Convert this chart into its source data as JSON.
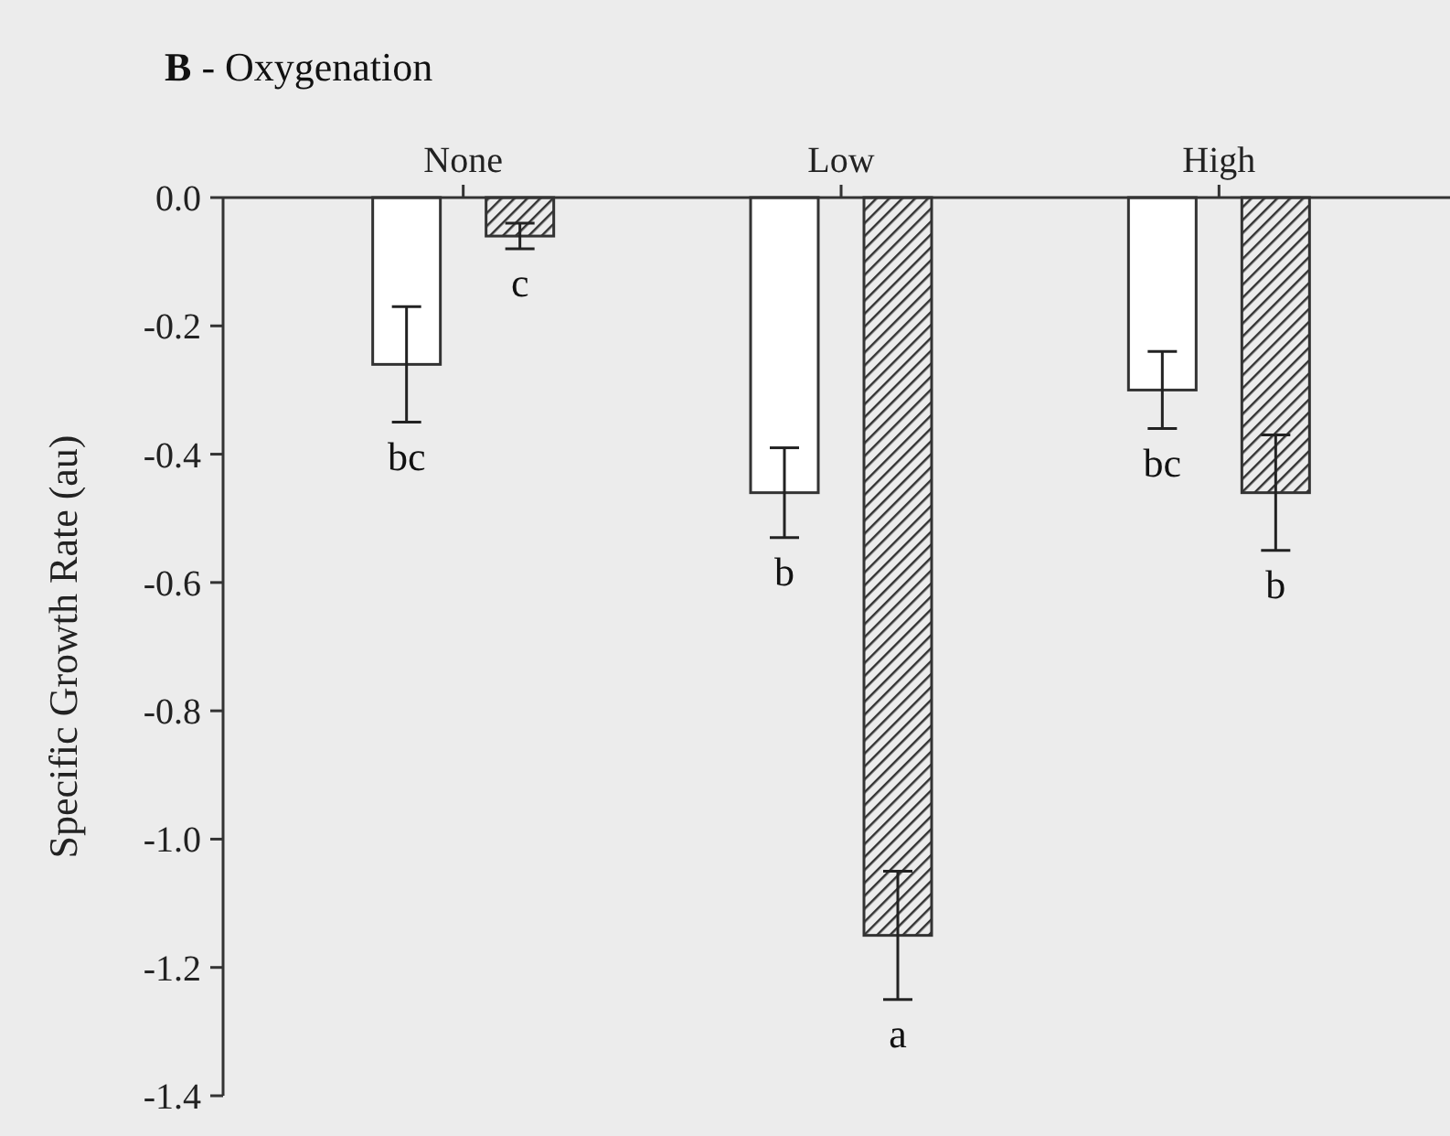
{
  "chart_data": {
    "type": "bar",
    "title": "B - Oxygenation",
    "ylabel": "Specific Growth Rate (au)",
    "categories": [
      "None",
      "Low",
      "High"
    ],
    "series": [
      {
        "color": "#ffffff",
        "values": [
          -0.26,
          -0.46,
          -0.3
        ],
        "errors": [
          0.09,
          0.07,
          0.06
        ]
      },
      {
        "color": "#333333",
        "values": [
          -0.06,
          -1.15,
          -0.46
        ],
        "errors": [
          0.02,
          0.1,
          0.09
        ]
      }
    ],
    "ylim": [
      -1.4,
      0
    ],
    "yticks": [
      {
        "value": 0,
        "label": "0.0"
      },
      -0.2,
      -0.4,
      -0.6,
      -0.8,
      {
        "value": -1,
        "label": "-1.0"
      },
      -1.2,
      -1.4
    ],
    "annotations": [
      "bc",
      "c",
      "b",
      "a",
      "bc",
      "b"
    ],
    "grid": false
  }
}
